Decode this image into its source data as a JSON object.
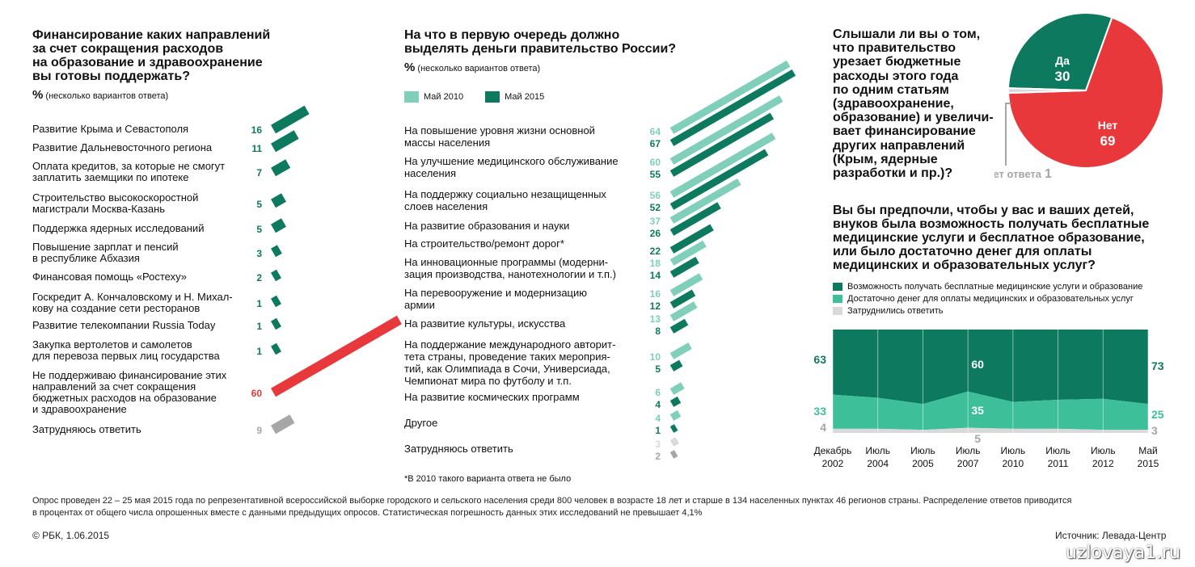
{
  "colors": {
    "dark": "#0d7a5f",
    "light": "#7fcfba",
    "red": "#e8383b",
    "gray": "#a6a6a6",
    "lightgray": "#d9d9d9",
    "mid": "#3dbf99"
  },
  "left": {
    "title": "Финансирование каких направлений за счет сокращения расходов на образование и здравоохранение вы готовы поддержать?",
    "title_lines": [
      "Финансирование каких направлений",
      "за счет сокращения расходов",
      "на образование и здравоохранение",
      "вы готовы поддержать?"
    ],
    "unit": "%",
    "note": "(несколько вариантов ответа)"
  },
  "mid": {
    "title_lines": [
      "На что в первую очередь должно",
      "выделять деньги правительство России?"
    ],
    "unit": "%",
    "note": "(несколько вариантов ответа)",
    "legend": [
      "Май 2010",
      "Май 2015"
    ],
    "footnote": "*В 2010 такого варианта ответа не было"
  },
  "pie": {
    "question_lines": [
      "Слышали ли вы о том,",
      "что правительство",
      "урезает бюджетные",
      "расходы этого года",
      "по одним статьям",
      "(здравоохранение,",
      "образование) и увеличи-",
      "вает финансирование",
      "других направлений",
      "(Крым, ядерные",
      "разработки и пр.)?"
    ],
    "yes_label": "Да",
    "no_label": "Нет",
    "na_label": "Нет ответа"
  },
  "area": {
    "question_lines": [
      "Вы бы предпочли, чтобы у вас и ваших детей,",
      "внуков была возможность получать бесплатные",
      "медицинские услуги и бесплатное образование,",
      "или было достаточно денег для оплаты",
      "медицинских и образовательных услуг?"
    ],
    "tick_lines": [
      [
        "Декабрь",
        "2002"
      ],
      [
        "Июль",
        "2004"
      ],
      [
        "Июль",
        "2005"
      ],
      [
        "Июль",
        "2007"
      ],
      [
        "Июль",
        "2010"
      ],
      [
        "Июль",
        "2011"
      ],
      [
        "Июль",
        "2012"
      ],
      [
        "Май",
        "2015"
      ]
    ]
  },
  "chart_data": [
    {
      "type": "bar",
      "categories": [
        [
          "Развитие Крыма и Севастополя"
        ],
        [
          "Развитие Дальневосточного региона"
        ],
        [
          "Оплата кредитов, за которые не смогут",
          "заплатить заемщики по ипотеке"
        ],
        [
          "Строительство высокоскоростной",
          "магистрали Москва-Казань"
        ],
        [
          "Поддержка ядерных исследований"
        ],
        [
          "Повышение зарплат и пенсий",
          "в республике Абхазия"
        ],
        [
          "Финансовая помощь «Ростеху»"
        ],
        [
          "Госкредит А. Кончаловскому и Н. Михал-",
          "кову на создание сети ресторанов"
        ],
        [
          "Развитие телекомпании Russia Today"
        ],
        [
          "Закупка вертолетов и самолетов",
          "для перевоза первых лиц государства"
        ],
        [
          "Не поддерживаю финансирование этих",
          "направлений за счет сокращения",
          "бюджетных расходов на образование",
          "и здравоохранение"
        ],
        [
          "Затрудняюсь ответить"
        ]
      ],
      "values": [
        16,
        11,
        7,
        5,
        5,
        3,
        2,
        1,
        1,
        1,
        60,
        9
      ]
    },
    {
      "type": "bar",
      "categories": [
        [
          "На повышение уровня жизни основной",
          "массы населения"
        ],
        [
          "На улучшение медицинского обслуживание",
          "населения"
        ],
        [
          "На поддержку социально незащищенных",
          "слоев населения"
        ],
        [
          "На развитие образования и науки"
        ],
        [
          "На строительство/ремонт дорог*"
        ],
        [
          "На инновационные программы (модерни-",
          "зация производства, нанотехнологии и т.п.)"
        ],
        [
          "На перевооружение и модернизацию",
          "армии"
        ],
        [
          "На развитие культуры, искусства"
        ],
        [
          "На поддержание международного авторит-",
          "тета страны, проведение таких мероприя-",
          "тий, как Олимпиада в Сочи, Универсиада,",
          "Чемпионат мира по футболу и т.п."
        ],
        [
          "На развитие космических программ"
        ],
        [
          "Другое"
        ],
        [
          "Затрудняюсь ответить"
        ]
      ],
      "series": [
        {
          "name": "Май 2010",
          "values": [
            64,
            60,
            56,
            37,
            null,
            18,
            16,
            13,
            10,
            6,
            4,
            3
          ]
        },
        {
          "name": "Май 2015",
          "values": [
            67,
            55,
            52,
            26,
            22,
            14,
            12,
            8,
            5,
            4,
            1,
            2
          ]
        }
      ]
    },
    {
      "type": "pie",
      "slices": [
        {
          "label": "Да",
          "value": 30
        },
        {
          "label": "Нет",
          "value": 69
        },
        {
          "label": "Нет ответа",
          "value": 1
        }
      ]
    },
    {
      "type": "area",
      "x": [
        "Декабрь 2002",
        "Июль 2004",
        "Июль 2005",
        "Июль 2007",
        "Июль 2010",
        "Июль 2011",
        "Июль 2012",
        "Май 2015"
      ],
      "series": [
        {
          "name": "Возможность получать бесплатные медицинские услуги и образование",
          "values": [
            63,
            null,
            null,
            60,
            null,
            null,
            null,
            73
          ]
        },
        {
          "name": "Достаточно денег для оплаты медицинских и образовательных услуг",
          "values": [
            33,
            null,
            null,
            35,
            null,
            null,
            null,
            25
          ]
        },
        {
          "name": "Затруднились ответить",
          "values": [
            4,
            null,
            null,
            5,
            null,
            null,
            null,
            3
          ]
        }
      ],
      "stacked": true,
      "ylim": [
        0,
        100
      ]
    }
  ],
  "footer": {
    "lines": [
      "Опрос проведен 22 – 25 мая 2015 года  по репрезентативной всероссийской выборке городского и сельского населения среди 800 человек в возрасте 18 лет и старше в 134 населенных пунктах 46 регионов страны. Распределение ответов приводится",
      "в процентах от общего числа опрошенных вместе с данными предыдущих опросов. Статистическая погрешность данных этих исследований не превышает 4,1%"
    ],
    "copyright": "© РБК, 1.06.2015",
    "source": "Источник: Левада-Центр",
    "watermark": "uzlovaya1.ru"
  }
}
